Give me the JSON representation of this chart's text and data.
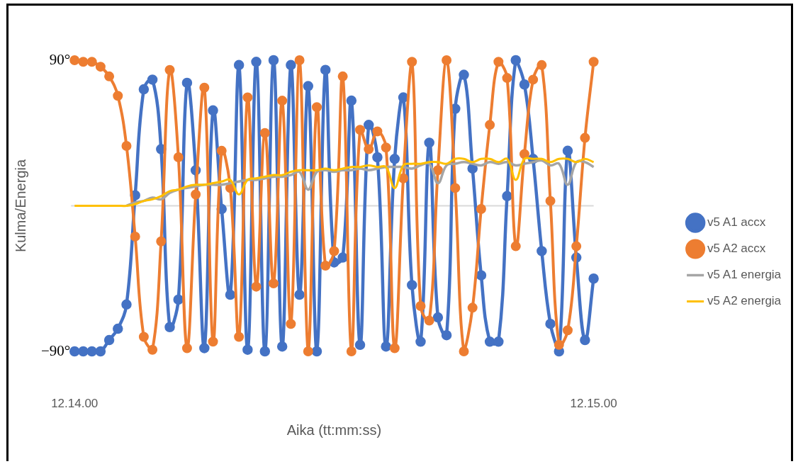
{
  "chart_data": {
    "type": "line",
    "xlabel": "Aika (tt:mm:ss)",
    "ylabel": "Kulma/Energia",
    "categories": [
      "12.14.00",
      null,
      null,
      null,
      null,
      null,
      null,
      null,
      null,
      null,
      null,
      null,
      null,
      null,
      null,
      null,
      null,
      null,
      null,
      null,
      null,
      null,
      null,
      null,
      null,
      null,
      null,
      null,
      null,
      null,
      null,
      null,
      null,
      null,
      null,
      null,
      null,
      null,
      null,
      null,
      null,
      null,
      null,
      null,
      null,
      null,
      null,
      null,
      null,
      null,
      null,
      null,
      null,
      null,
      null,
      null,
      null,
      null,
      null,
      null,
      "12.15.00"
    ],
    "ylim": [
      -90,
      90
    ],
    "yticks": [
      {
        "value": -90,
        "label": "−90°"
      },
      {
        "value": 90,
        "label": "90°"
      }
    ],
    "ref_lines": [
      {
        "axis": "y",
        "value": 0,
        "color": "#d9d9d9"
      }
    ],
    "grid": false,
    "legend": "right",
    "marker": "circle",
    "line_style": "solid",
    "series": [
      {
        "name": "v5 A1 accx",
        "color": "#4472c4",
        "values": [
          -90,
          -90,
          -90,
          -90,
          -83,
          -76,
          -61,
          6.5,
          72,
          78,
          35,
          -75,
          -58,
          76,
          22,
          -88,
          59,
          -2,
          -55,
          87,
          -89,
          89,
          -90,
          90,
          -87,
          87,
          -55,
          74,
          -90,
          84,
          -35,
          -32,
          65,
          -86,
          50,
          30,
          -87,
          29,
          67,
          -49,
          -84,
          39,
          -69,
          -80,
          60,
          81,
          23,
          -43,
          -84,
          -84,
          6,
          90,
          75,
          29,
          -28,
          -73,
          -90,
          34,
          -32,
          -83,
          -45
        ]
      },
      {
        "name": "v5 A2 accx",
        "color": "#ed7d31",
        "values": [
          90,
          89,
          89,
          86,
          80,
          68,
          37,
          -19,
          -81,
          -89,
          -22,
          84,
          30,
          -88,
          7,
          73,
          -84,
          34,
          11,
          -81,
          67,
          -50,
          45,
          -48,
          65,
          -73,
          90,
          -90,
          61,
          -37,
          -28,
          80,
          -90,
          47,
          35,
          46,
          36,
          -88,
          17,
          89,
          -62,
          -71,
          22,
          90,
          11,
          -90,
          -63,
          -2,
          50,
          89,
          79,
          -25,
          32,
          78,
          87,
          3,
          -86,
          -77,
          -25,
          42,
          89
        ]
      },
      {
        "name": "v5 A1 energia",
        "color": "#a5a5a5",
        "marker": "none",
        "values": [
          null,
          null,
          null,
          null,
          null,
          null,
          0,
          2,
          3,
          5,
          4,
          8,
          10,
          11,
          12,
          13,
          13,
          13,
          14,
          15,
          16,
          16,
          17,
          18,
          18,
          19,
          21,
          10,
          21,
          22,
          21,
          22,
          22,
          23,
          22,
          23,
          24,
          24,
          24,
          23,
          25,
          26,
          14,
          25,
          26,
          27,
          26,
          25,
          27,
          26,
          27,
          25,
          26,
          27,
          28,
          25,
          26,
          13,
          27,
          27,
          24
        ]
      },
      {
        "name": "v5 A2 energia",
        "color": "#ffc000",
        "marker": "none",
        "values": [
          0,
          0,
          0,
          0,
          0,
          0,
          0,
          1,
          3,
          4,
          6,
          9,
          10,
          12,
          13,
          13,
          14,
          15,
          16,
          7,
          16,
          17,
          18,
          19,
          19,
          21,
          22,
          22,
          22,
          23,
          22,
          23,
          24,
          24,
          25,
          24,
          24,
          11,
          25,
          26,
          26,
          27,
          27,
          26,
          29,
          29,
          27,
          29,
          29,
          27,
          29,
          16,
          29,
          29,
          29,
          27,
          29,
          29,
          27,
          29,
          27
        ]
      }
    ]
  }
}
